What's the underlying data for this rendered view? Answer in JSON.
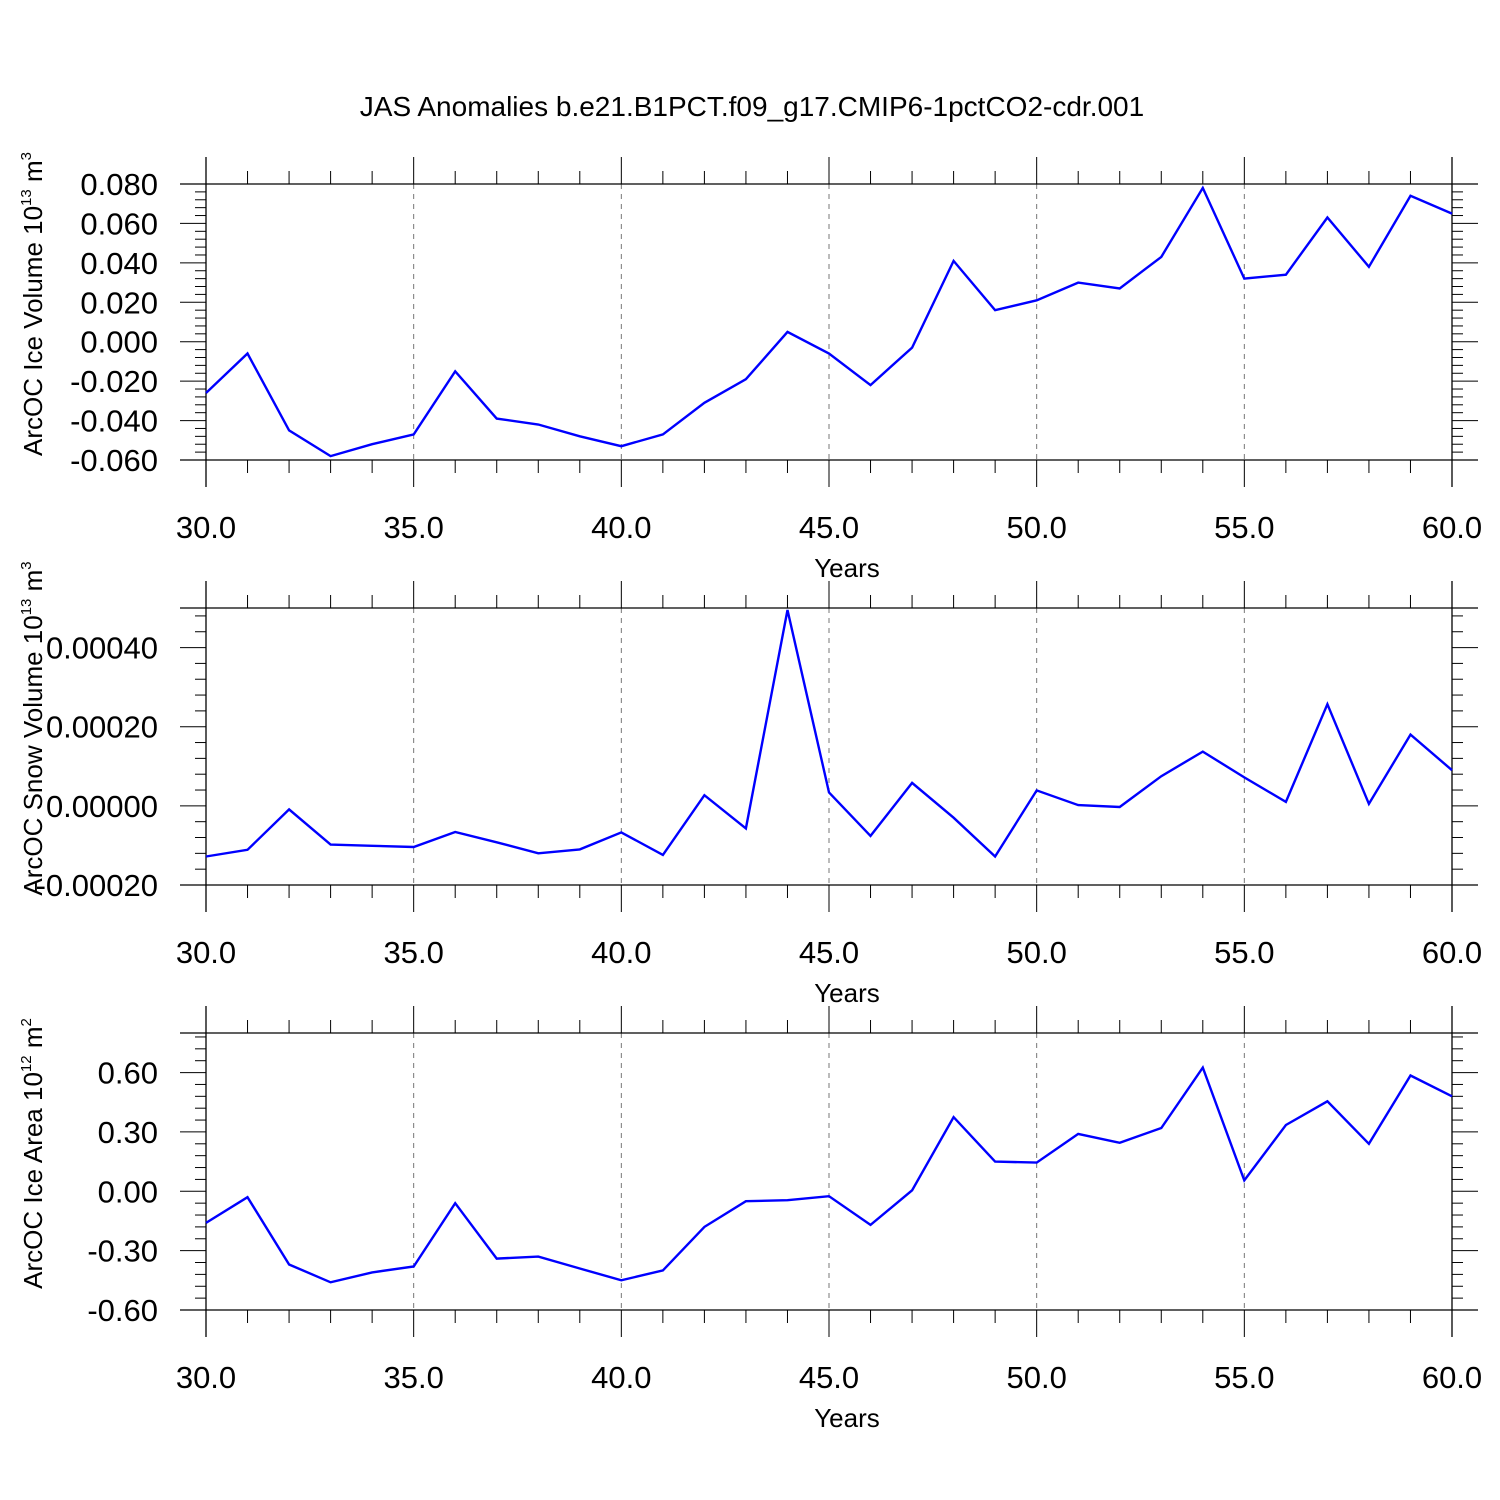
{
  "title": "JAS Anomalies b.e21.B1PCT.f09_g17.CMIP6-1pctCO2-cdr.001",
  "colors": {
    "line": "#0000ff",
    "grid": "#777777",
    "frame": "#000000"
  },
  "chart_data": [
    {
      "type": "line",
      "xlabel": "Years",
      "ylabel": {
        "main": "ArcOC Ice Volume 10",
        "exp": "13",
        "unit": " m",
        "unit_exp": "3"
      },
      "xlim": [
        30,
        60
      ],
      "ylim": [
        -0.06,
        0.08
      ],
      "x_ticks": [
        "30.0",
        "35.0",
        "40.0",
        "45.0",
        "50.0",
        "55.0",
        "60.0"
      ],
      "y_ticks": [
        "-0.060",
        "-0.040",
        "-0.020",
        "0.000",
        "0.020",
        "0.040",
        "0.060",
        "0.080"
      ],
      "grid": "vertical dashed",
      "x": [
        30,
        31,
        32,
        33,
        34,
        35,
        36,
        37,
        38,
        39,
        40,
        41,
        42,
        43,
        44,
        45,
        46,
        47,
        48,
        49,
        50,
        51,
        52,
        53,
        54,
        55,
        56,
        57,
        58,
        59,
        60
      ],
      "values": [
        -0.026,
        -0.006,
        -0.045,
        -0.058,
        -0.052,
        -0.047,
        -0.015,
        -0.039,
        -0.042,
        -0.048,
        -0.053,
        -0.047,
        -0.031,
        -0.019,
        0.005,
        -0.006,
        -0.022,
        -0.003,
        0.041,
        0.016,
        0.021,
        0.03,
        0.027,
        0.043,
        0.078,
        0.032,
        0.034,
        0.063,
        0.038,
        0.074,
        0.065
      ]
    },
    {
      "type": "line",
      "xlabel": "Years",
      "ylabel": {
        "main": "ArcOC Snow Volume 10",
        "exp": "13",
        "unit": " m",
        "unit_exp": "3"
      },
      "xlim": [
        30,
        60
      ],
      "ylim": [
        -0.0002,
        0.0005
      ],
      "x_ticks": [
        "30.0",
        "35.0",
        "40.0",
        "45.0",
        "50.0",
        "55.0",
        "60.0"
      ],
      "y_ticks": [
        "-0.00020",
        "0.00000",
        "0.00020",
        "0.00040"
      ],
      "grid": "vertical dashed",
      "x": [
        30,
        31,
        32,
        33,
        34,
        35,
        36,
        37,
        38,
        39,
        40,
        41,
        42,
        43,
        44,
        45,
        46,
        47,
        48,
        49,
        50,
        51,
        52,
        53,
        54,
        55,
        56,
        57,
        58,
        59,
        60
      ],
      "values": [
        -0.000128,
        -0.000111,
        -9e-06,
        -9.8e-05,
        -0.000101,
        -0.000104,
        -6.6e-05,
        -9.2e-05,
        -0.00012,
        -0.00011,
        -6.7e-05,
        -0.000124,
        2.7e-05,
        -5.7e-05,
        0.000495,
        3.4e-05,
        -7.6e-05,
        5.8e-05,
        -3e-05,
        -0.000128,
        3.9e-05,
        2e-06,
        -3e-06,
        7.5e-05,
        0.000137,
        7.2e-05,
        1e-05,
        0.000257,
        5e-06,
        0.00018,
        9e-05
      ]
    },
    {
      "type": "line",
      "xlabel": "Years",
      "ylabel": {
        "main": "ArcOC Ice Area 10",
        "exp": "12",
        "unit": " m",
        "unit_exp": "2"
      },
      "xlim": [
        30,
        60
      ],
      "ylim": [
        -0.6,
        0.8
      ],
      "x_ticks": [
        "30.0",
        "35.0",
        "40.0",
        "45.0",
        "50.0",
        "55.0",
        "60.0"
      ],
      "y_ticks": [
        "-0.60",
        "-0.30",
        "0.00",
        "0.30",
        "0.60"
      ],
      "grid": "vertical dashed",
      "x": [
        30,
        31,
        32,
        33,
        34,
        35,
        36,
        37,
        38,
        39,
        40,
        41,
        42,
        43,
        44,
        45,
        46,
        47,
        48,
        49,
        50,
        51,
        52,
        53,
        54,
        55,
        56,
        57,
        58,
        59,
        60
      ],
      "values": [
        -0.16,
        -0.03,
        -0.37,
        -0.46,
        -0.41,
        -0.38,
        -0.06,
        -0.34,
        -0.33,
        -0.39,
        -0.45,
        -0.4,
        -0.18,
        -0.05,
        -0.045,
        -0.025,
        -0.17,
        0.005,
        0.375,
        0.15,
        0.145,
        0.29,
        0.245,
        0.32,
        0.625,
        0.055,
        0.335,
        0.455,
        0.24,
        0.585,
        0.48
      ]
    }
  ]
}
